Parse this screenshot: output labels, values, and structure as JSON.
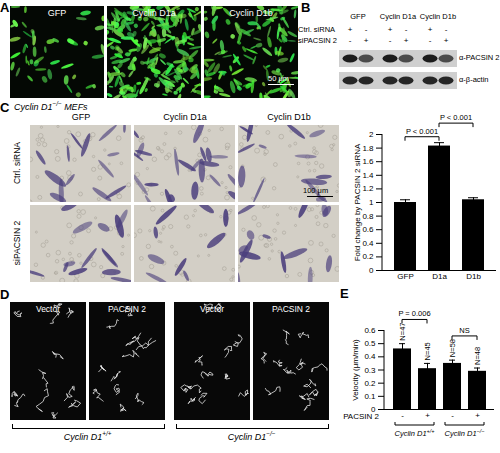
{
  "panels": {
    "A": {
      "letter": "A",
      "images": [
        "GFP",
        "Cyclin D1a",
        "Cyclin D1b"
      ],
      "scale_bar": "50 μm"
    },
    "B": {
      "letter": "B",
      "columns": [
        "GFP",
        "Cyclin D1a",
        "Cyclin D1b"
      ],
      "rows": [
        {
          "label": "Ctrl. siRNA",
          "marks": [
            "+",
            "-",
            "+",
            "-",
            "+",
            "-"
          ]
        },
        {
          "label": "siPACSIN 2",
          "marks": [
            "-",
            "+",
            "-",
            "+",
            "-",
            "+"
          ]
        }
      ],
      "blots": [
        "α-PACSIN 2",
        "α-β-actin"
      ]
    },
    "C": {
      "letter": "C",
      "genotype": {
        "text": "Cyclin D1",
        "sup": "−/−",
        "after": " MEFs"
      },
      "columns": [
        "GFP",
        "Cyclin D1a",
        "Cyclin D1b"
      ],
      "rows": [
        "Ctrl. siRNA",
        "siPACSIN 2"
      ],
      "scale_bar": "100 μm"
    },
    "D": {
      "letter": "D",
      "images": [
        "Vector",
        "PACSIN 2",
        "Vector",
        "PACSIN 2"
      ],
      "groups": [
        {
          "text": "Cyclin D1",
          "sup": "+/+"
        },
        {
          "text": "Cyclin D1",
          "sup": "−/−"
        }
      ]
    },
    "E": {
      "letter": "E"
    }
  },
  "chart_data": [
    {
      "type": "bar",
      "categories": [
        "GFP",
        "D1a",
        "D1b"
      ],
      "values": [
        1.0,
        1.83,
        1.04
      ],
      "errors": [
        0.04,
        0.05,
        0.03
      ],
      "color": "#000000",
      "ylabel": "Fold change by PACSIN 2 siRNA",
      "ylim": [
        0,
        2
      ],
      "yticks": [
        0,
        0.2,
        0.4,
        0.6,
        0.8,
        1,
        1.2,
        1.4,
        1.6,
        1.8,
        2
      ],
      "annotations": [
        {
          "text": "P < 0.001",
          "between": [
            0,
            1
          ]
        },
        {
          "text": "P < 0.001",
          "between": [
            1,
            2
          ]
        }
      ]
    },
    {
      "type": "bar",
      "categories": [
        "-",
        "+",
        "-",
        "+"
      ],
      "xlabel": "PACSIN 2",
      "values": [
        0.46,
        0.31,
        0.35,
        0.29
      ],
      "errors": [
        0.04,
        0.04,
        0.025,
        0.025
      ],
      "color": "#000000",
      "ylabel": "Velocity (μm/min)",
      "ylim": [
        0,
        0.6
      ],
      "yticks": [
        0,
        0.1,
        0.2,
        0.3,
        0.4,
        0.5,
        0.6
      ],
      "n_labels": [
        "N=47",
        "N=45",
        "N=58",
        "N=48"
      ],
      "annotations": [
        {
          "text": "P = 0.006",
          "between": [
            0,
            1
          ]
        },
        {
          "text": "NS",
          "between": [
            2,
            3
          ]
        }
      ],
      "groups": [
        {
          "label": {
            "text": "Cyclin D1",
            "sup": "+/+"
          },
          "members": [
            0,
            1
          ]
        },
        {
          "label": {
            "text": "Cyclin D1",
            "sup": "−/−"
          },
          "members": [
            2,
            3
          ]
        }
      ]
    }
  ]
}
